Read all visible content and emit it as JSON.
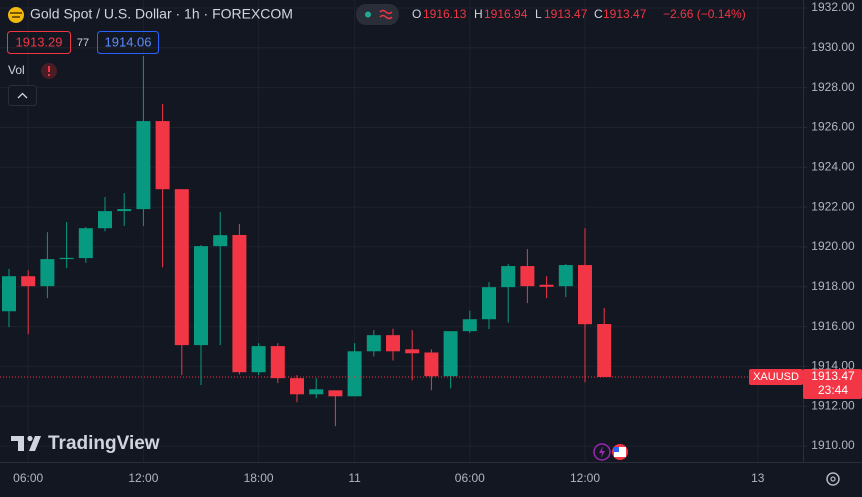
{
  "chart_data": {
    "type": "candlestick",
    "title": "Gold Spot / U.S. Dollar · 1h · FOREXCOM",
    "categories": [
      null,
      "06:00",
      null,
      null,
      null,
      null,
      null,
      "12:00",
      null,
      null,
      null,
      null,
      null,
      "18:00",
      null,
      null,
      null,
      null,
      "11",
      null,
      null,
      null,
      null,
      null,
      "06:00",
      null,
      null,
      null,
      null,
      null,
      "12:00",
      null,
      null,
      null,
      null,
      null,
      null,
      null,
      null,
      "13",
      null,
      null
    ],
    "open": [
      1916.77,
      1918.53,
      1918.03,
      1919.39,
      1919.44,
      1920.94,
      1921.8,
      1921.9,
      1926.32,
      1922.9,
      1915.07,
      1920.04,
      1920.6,
      1913.71,
      1915.02,
      1913.41,
      1912.6,
      1912.8,
      1912.5,
      1914.76,
      1915.57,
      1914.86,
      1914.7,
      1913.51,
      1915.77,
      1916.37,
      1917.98,
      1919.04,
      1918.1,
      1918.03,
      1919.09,
      1916.13,
      null,
      null,
      null,
      null,
      null,
      null,
      null,
      null,
      null,
      null
    ],
    "high": [
      1918.9,
      1918.83,
      1920.74,
      1921.25,
      1921.0,
      1922.5,
      1922.7,
      1929.59,
      1927.18,
      1922.9,
      1920.1,
      1921.75,
      1921.15,
      1915.17,
      1915.17,
      1913.56,
      1913.41,
      1912.8,
      1915.17,
      1915.82,
      1915.9,
      1915.82,
      1914.86,
      1915.77,
      1916.8,
      1918.23,
      1919.14,
      1919.89,
      1918.53,
      1919.14,
      1920.94,
      1916.94,
      null,
      null,
      null,
      null,
      null,
      null,
      null,
      null,
      null,
      null
    ],
    "low": [
      1915.97,
      1915.62,
      1917.43,
      1918.93,
      1919.2,
      1920.79,
      1921.05,
      1921.05,
      1918.98,
      1913.56,
      1913.06,
      1915.07,
      1913.6,
      1913.56,
      1913.16,
      1912.2,
      1912.4,
      1911.0,
      1912.5,
      1914.5,
      1914.3,
      1913.3,
      1912.8,
      1912.9,
      1915.67,
      1915.87,
      1916.2,
      1917.18,
      1917.43,
      1917.48,
      1913.2,
      1913.47,
      null,
      null,
      null,
      null,
      null,
      null,
      null,
      null,
      null,
      null
    ],
    "close": [
      1918.53,
      1918.03,
      1919.39,
      1919.45,
      1920.94,
      1921.8,
      1921.9,
      1926.32,
      1922.9,
      1915.07,
      1920.04,
      1920.59,
      1913.71,
      1915.02,
      1913.41,
      1912.6,
      1912.85,
      1912.5,
      1914.76,
      1915.57,
      1914.76,
      1914.66,
      1913.51,
      1915.77,
      1916.37,
      1917.98,
      1919.04,
      1918.03,
      1918.0,
      1919.09,
      1916.12,
      1913.47,
      null,
      null,
      null,
      null,
      null,
      null,
      null,
      null,
      null,
      null
    ],
    "up_color": "#089981",
    "down_color": "#f23645",
    "ylim": [
      1909.2,
      1932.4
    ],
    "yticks": [
      {
        "value": 1910,
        "label": "1910.00"
      },
      {
        "value": 1912,
        "label": "1912.00"
      },
      {
        "value": 1914,
        "label": "1914.00"
      },
      {
        "value": 1916,
        "label": "1916.00"
      },
      {
        "value": 1918,
        "label": "1918.00"
      },
      {
        "value": 1920,
        "label": "1920.00"
      },
      {
        "value": 1922,
        "label": "1922.00"
      },
      {
        "value": 1924,
        "label": "1924.00"
      },
      {
        "value": 1926,
        "label": "1926.00"
      },
      {
        "value": 1928,
        "label": "1928.00"
      },
      {
        "value": 1930,
        "label": "1930.00"
      },
      {
        "value": 1932,
        "label": "1932.00"
      }
    ],
    "grid": true
  },
  "toolbar": {
    "ohlc_labels": [
      "O",
      "H",
      "L",
      "C"
    ],
    "change": "−2.66 (−0.14%)",
    "bid": 1913.29,
    "spread": 77,
    "ask": 1914.06,
    "volume_label": "Vol",
    "symbol_tag": "XAUUSD",
    "countdown": "23:44",
    "brand": "TradingView"
  }
}
